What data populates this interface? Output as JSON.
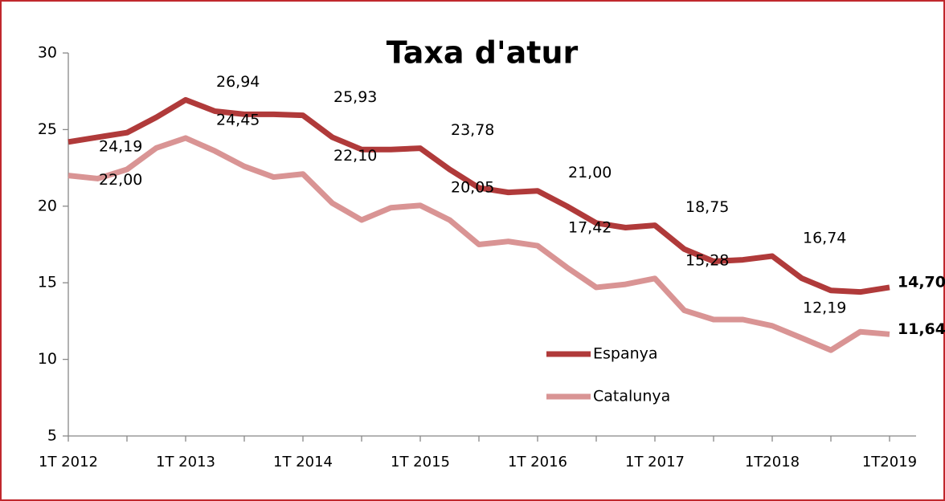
{
  "chart_data": {
    "type": "line",
    "title": "Taxa d'atur",
    "categories": [
      "1T 2012",
      null,
      null,
      null,
      "1T 2013",
      null,
      null,
      null,
      "1T 2014",
      null,
      null,
      null,
      "1T 2015",
      null,
      null,
      null,
      "1T 2016",
      null,
      null,
      null,
      "1T 2017",
      null,
      null,
      null,
      "1T2018",
      null,
      null,
      null,
      "1T2019"
    ],
    "series": [
      {
        "name": "Espanya",
        "color": "#b03a3a",
        "values": [
          24.19,
          24.5,
          24.8,
          25.8,
          26.94,
          26.2,
          26.0,
          26.0,
          25.93,
          24.5,
          23.7,
          23.7,
          23.78,
          22.4,
          21.2,
          20.9,
          21.0,
          20.0,
          18.9,
          18.6,
          18.75,
          17.2,
          16.4,
          16.5,
          16.74,
          15.3,
          14.5,
          14.4,
          14.7
        ],
        "value_labels": [
          "24,19",
          null,
          null,
          null,
          "26,94",
          null,
          null,
          null,
          "25,93",
          null,
          null,
          null,
          "23,78",
          null,
          null,
          null,
          "21,00",
          null,
          null,
          null,
          "18,75",
          null,
          null,
          null,
          "16,74",
          null,
          null,
          null,
          "14,70"
        ]
      },
      {
        "name": "Catalunya",
        "color": "#d99494",
        "values": [
          22.0,
          21.8,
          22.4,
          23.8,
          24.45,
          23.6,
          22.6,
          21.9,
          22.1,
          20.2,
          19.1,
          19.9,
          20.05,
          19.1,
          17.5,
          17.7,
          17.42,
          16.0,
          14.7,
          14.9,
          15.28,
          13.2,
          12.6,
          12.6,
          12.19,
          11.4,
          10.6,
          11.8,
          11.64
        ],
        "value_labels": [
          "22,00",
          null,
          null,
          null,
          "24,45",
          null,
          null,
          null,
          "22,10",
          null,
          null,
          null,
          "20,05",
          null,
          null,
          null,
          "17,42",
          null,
          null,
          null,
          "15,28",
          null,
          null,
          null,
          "12,19",
          null,
          null,
          null,
          "11,64"
        ]
      }
    ],
    "ylim": [
      5,
      30
    ],
    "yticks": [
      5,
      10,
      15,
      20,
      25,
      30
    ],
    "grid": false,
    "legend": "lower right"
  }
}
